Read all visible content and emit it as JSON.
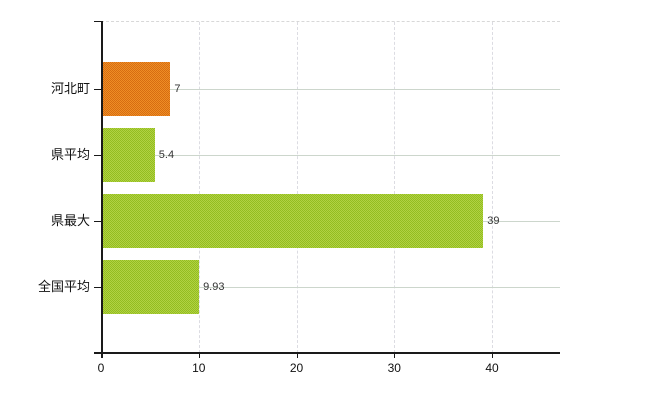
{
  "chart": {
    "background": "#ffffff",
    "axis_color": "#1a1a1a",
    "value_label_color": "#333333",
    "category_label_color": "#111111",
    "tick_label_color": "#111111",
    "grid_vertical_color": "#dcdce2",
    "grid_horizontal_color": "#ccd6cc",
    "plot_top_border_color": "#d8d8d8"
  },
  "chart_data": {
    "type": "bar",
    "orientation": "horizontal",
    "title": "",
    "xlabel": "",
    "ylabel": "",
    "categories": [
      "河北町",
      "県平均",
      "県最大",
      "全国平均"
    ],
    "values": [
      7,
      5.4,
      39,
      9.93
    ],
    "value_labels": [
      "7",
      "5.4",
      "39",
      "9.93"
    ],
    "bar_styles": [
      {
        "name": "orange-dotted",
        "base": "#ef8e25",
        "dot": "#d66d12"
      },
      {
        "name": "green-dotted",
        "base": "#b1d243",
        "dot": "#93bd20"
      },
      {
        "name": "green-dotted",
        "base": "#b1d243",
        "dot": "#93bd20"
      },
      {
        "name": "green-dotted",
        "base": "#b1d243",
        "dot": "#93bd20"
      }
    ],
    "xlim": [
      0,
      47
    ],
    "x_ticks": [
      0,
      10,
      20,
      30,
      40
    ],
    "grid": true,
    "legend": false
  }
}
